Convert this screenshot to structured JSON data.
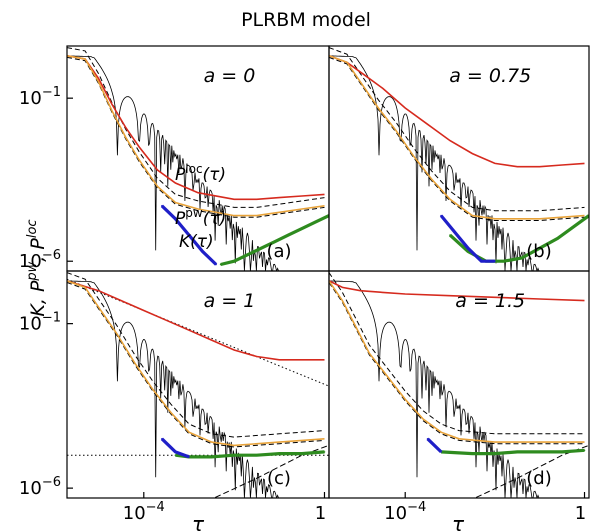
{
  "figure": {
    "title": "PLRBM model",
    "ylabel": {
      "base": "K, P",
      "sup1": "pw",
      "mid": ", P",
      "sup2": "loc"
    },
    "xlabel": "τ",
    "xticks": [
      {
        "base": "10",
        "exp": "−4",
        "value": -4
      },
      {
        "base": "1",
        "exp": "",
        "value": 0
      }
    ],
    "yticks": [
      {
        "base": "10",
        "exp": "−1",
        "value": -1
      },
      {
        "base": "10",
        "exp": "−6",
        "value": -6
      }
    ]
  },
  "colors": {
    "p_loc": "#d62a1e",
    "p_pw": "#e8a33a",
    "k_blue": "#1f1fc8",
    "k_green": "#2e8b1f",
    "guide": "#000000"
  },
  "chart_data": [
    {
      "type": "line",
      "panel_label": "(a)",
      "a_label": "a = 0",
      "curve_labels": {
        "ploc": "P",
        "ploc_sup": "loc",
        "ploc_arg": "(τ)",
        "ppw": "P",
        "ppw_sup": "pw",
        "ppw_arg": "(τ)",
        "k": "K(τ)"
      },
      "xscale": "log",
      "yscale": "log",
      "xlim": [
        -5.7,
        0.1
      ],
      "ylim": [
        -6.3,
        0.6
      ],
      "series": [
        {
          "key": "ploc",
          "x": [
            -5.7,
            -5.3,
            -5.0,
            -4.7,
            -4.4,
            -4.1,
            -3.7,
            -3.3,
            -2.8,
            -2.0,
            -1.5,
            -1.0,
            -0.5,
            0.0
          ],
          "y": [
            0.3,
            0.2,
            -0.4,
            -1.2,
            -1.9,
            -2.5,
            -3.2,
            -3.6,
            -3.9,
            -4.1,
            -4.1,
            -4.05,
            -4.0,
            -3.95
          ]
        },
        {
          "key": "ppw",
          "x": [
            -5.7,
            -5.3,
            -5.0,
            -4.7,
            -4.4,
            -4.1,
            -3.7,
            -3.3,
            -2.8,
            -2.0,
            -1.5,
            -1.0,
            -0.5,
            0.0
          ],
          "y": [
            0.3,
            0.2,
            -0.5,
            -1.4,
            -2.2,
            -2.9,
            -3.7,
            -4.2,
            -4.4,
            -4.6,
            -4.6,
            -4.5,
            -4.4,
            -4.3
          ]
        },
        {
          "key": "k_green",
          "x": [
            -2.3,
            -2.0,
            -1.7,
            -1.4,
            -1.1,
            -0.8,
            -0.5,
            -0.2,
            0.1
          ],
          "y": [
            -6.1,
            -6.0,
            -5.8,
            -5.6,
            -5.4,
            -5.2,
            -5.0,
            -4.8,
            -4.6
          ]
        },
        {
          "key": "k_blue",
          "x": [
            -3.6,
            -3.3,
            -3.0,
            -2.7,
            -2.4
          ],
          "y": [
            -4.3,
            -4.7,
            -5.2,
            -5.7,
            -6.1
          ]
        }
      ]
    },
    {
      "type": "line",
      "panel_label": "(b)",
      "a_label": "a = 0.75",
      "xscale": "log",
      "yscale": "log",
      "xlim": [
        -5.7,
        0.1
      ],
      "ylim": [
        -6.3,
        0.6
      ],
      "series": [
        {
          "key": "ploc",
          "x": [
            -5.7,
            -5.3,
            -4.9,
            -4.5,
            -4.0,
            -3.5,
            -3.0,
            -2.5,
            -2.0,
            -1.5,
            -1.0,
            -0.5,
            0.0
          ],
          "y": [
            0.3,
            0.1,
            -0.3,
            -0.7,
            -1.3,
            -1.8,
            -2.3,
            -2.7,
            -3.0,
            -3.1,
            -3.1,
            -3.05,
            -3.0
          ]
        },
        {
          "key": "ppw",
          "x": [
            -5.7,
            -5.3,
            -5.0,
            -4.6,
            -4.2,
            -3.8,
            -3.4,
            -3.0,
            -2.5,
            -2.0,
            -1.0,
            0.0
          ],
          "y": [
            0.3,
            0.1,
            -0.5,
            -1.3,
            -2.0,
            -2.8,
            -3.5,
            -4.1,
            -4.6,
            -4.7,
            -4.7,
            -4.6
          ]
        },
        {
          "key": "k_green",
          "x": [
            -3.0,
            -2.6,
            -2.2,
            -1.8,
            -1.4,
            -1.0,
            -0.6,
            -0.2,
            0.1
          ],
          "y": [
            -5.2,
            -5.7,
            -6.0,
            -6.0,
            -5.9,
            -5.6,
            -5.3,
            -4.9,
            -4.6
          ]
        },
        {
          "key": "k_blue",
          "x": [
            -3.2,
            -2.9,
            -2.6,
            -2.3,
            -2.0
          ],
          "y": [
            -4.6,
            -5.1,
            -5.6,
            -6.0,
            -6.0
          ]
        }
      ]
    },
    {
      "type": "line",
      "panel_label": "(c)",
      "a_label": "a = 1",
      "xscale": "log",
      "yscale": "log",
      "xlim": [
        -5.7,
        0.1
      ],
      "ylim": [
        -6.3,
        0.6
      ],
      "series": [
        {
          "key": "ploc",
          "x": [
            -5.7,
            -5.0,
            -4.5,
            -4.0,
            -3.5,
            -3.0,
            -2.5,
            -2.0,
            -1.5,
            -1.0,
            -0.5,
            0.0
          ],
          "y": [
            0.3,
            0.0,
            -0.3,
            -0.6,
            -0.9,
            -1.2,
            -1.5,
            -1.8,
            -2.0,
            -2.1,
            -2.1,
            -2.1
          ]
        },
        {
          "key": "ppw",
          "x": [
            -5.7,
            -5.3,
            -5.0,
            -4.6,
            -4.2,
            -3.8,
            -3.4,
            -3.0,
            -2.5,
            -2.0,
            -1.0,
            0.0
          ],
          "y": [
            0.3,
            0.1,
            -0.5,
            -1.3,
            -2.2,
            -3.0,
            -3.7,
            -4.3,
            -4.6,
            -4.7,
            -4.6,
            -4.5
          ]
        },
        {
          "key": "k_green",
          "x": [
            -3.3,
            -3.0,
            -2.5,
            -2.0,
            -1.5,
            -1.0,
            -0.5,
            0.0
          ],
          "y": [
            -5.0,
            -5.05,
            -5.05,
            -5.0,
            -5.0,
            -4.95,
            -4.95,
            -4.9
          ]
        },
        {
          "key": "k_blue",
          "x": [
            -3.6,
            -3.3,
            -3.0
          ],
          "y": [
            -4.5,
            -4.9,
            -5.05
          ]
        }
      ]
    },
    {
      "type": "line",
      "panel_label": "(d)",
      "a_label": "a = 1.5",
      "xscale": "log",
      "yscale": "log",
      "xlim": [
        -5.7,
        0.1
      ],
      "ylim": [
        -6.3,
        0.6
      ],
      "series": [
        {
          "key": "ploc",
          "x": [
            -5.7,
            -5.4,
            -5.0,
            -4.5,
            -4.0,
            -3.0,
            -2.0,
            -1.0,
            0.0
          ],
          "y": [
            0.3,
            0.1,
            0.0,
            -0.05,
            -0.1,
            -0.15,
            -0.2,
            -0.25,
            -0.3
          ]
        },
        {
          "key": "ppw",
          "x": [
            -5.7,
            -5.4,
            -5.1,
            -4.8,
            -4.4,
            -4.0,
            -3.6,
            -3.2,
            -2.8,
            -2.0,
            -1.0,
            0.0
          ],
          "y": [
            0.3,
            -0.3,
            -1.1,
            -1.9,
            -2.6,
            -3.3,
            -3.9,
            -4.3,
            -4.5,
            -4.6,
            -4.6,
            -4.6
          ]
        },
        {
          "key": "k_green",
          "x": [
            -3.2,
            -2.5,
            -2.0,
            -1.5,
            -1.0,
            -0.5,
            0.0
          ],
          "y": [
            -4.9,
            -4.95,
            -4.95,
            -4.9,
            -4.9,
            -4.9,
            -4.85
          ]
        },
        {
          "key": "k_blue",
          "x": [
            -3.5,
            -3.2
          ],
          "y": [
            -4.5,
            -4.9
          ]
        }
      ]
    }
  ]
}
